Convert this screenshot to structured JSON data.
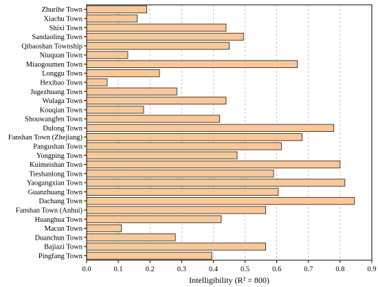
{
  "chart_data": {
    "type": "bar",
    "orientation": "horizontal",
    "categories": [
      "Zhurihe Town",
      "Xiachu Town",
      "Shixi Town",
      "Sandaoling Town",
      "Qibaoshan Township",
      "Niuquan Town",
      "Miaogoumen Town",
      "Longgu Town",
      "Hexibao Town",
      "Jugezhuang Town",
      "Wulaga Town",
      "Kouqian Town",
      "Shouwangfen Town",
      "Dulong Town",
      "Fanshan Town (Zhejiang)",
      "Pangushan Town",
      "Yongping Town",
      "Kuimeishan Town",
      "Tieshanlong Town",
      "Yaogangxian Town",
      "Guanzhuang Town",
      "Dachang Town",
      "Fanshan Town (Anhui)",
      "Huanghua Town",
      "Macun Town",
      "Duanchun Town",
      "Bajiazi Town",
      "Pingfang Town"
    ],
    "values": [
      0.19,
      0.16,
      0.44,
      0.495,
      0.45,
      0.13,
      0.665,
      0.23,
      0.065,
      0.285,
      0.44,
      0.18,
      0.42,
      0.78,
      0.68,
      0.615,
      0.475,
      0.8,
      0.59,
      0.815,
      0.605,
      0.845,
      0.565,
      0.425,
      0.11,
      0.28,
      0.565,
      0.395
    ],
    "xlabel": "Intelligibility (R² = 800)",
    "ylabel": "",
    "xlim": [
      0,
      0.9
    ],
    "xticks": [
      "0.0",
      "0.1",
      "0.2",
      "0.3",
      "0.4",
      "0.5",
      "0.6",
      "0.7",
      "0.8",
      "0.9"
    ],
    "grid": "vertical dashed",
    "colors": {
      "bar_fill": "#f8c898",
      "bar_stroke": "#3a2a20",
      "grid": "#b8b8b8",
      "axis": "#000000"
    }
  }
}
